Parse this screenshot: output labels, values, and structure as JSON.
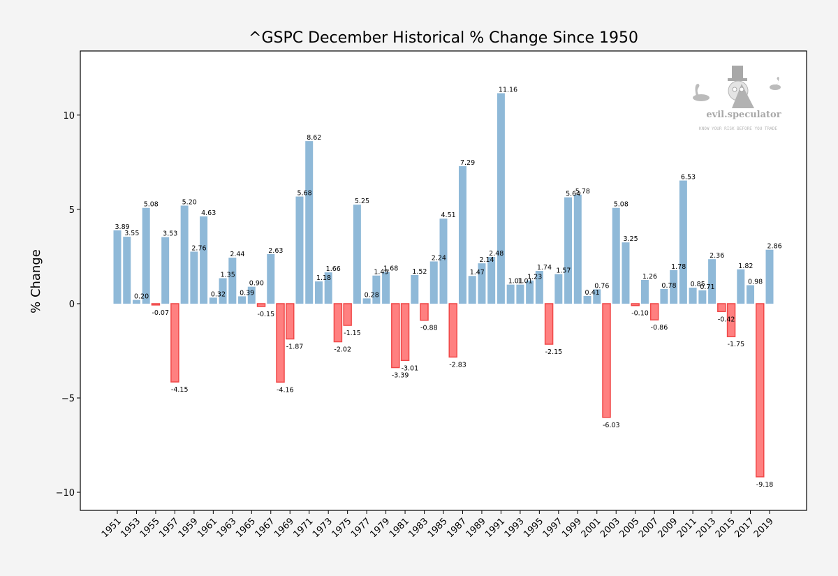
{
  "chart_data": {
    "type": "bar",
    "title": "^GSPC December Historical % Change Since 1950",
    "xlabel": "",
    "ylabel": "% Change",
    "ylim": [
      -10.96,
      13.4
    ],
    "yticks": [
      -10,
      -5,
      0,
      5,
      10
    ],
    "ytick_labels": [
      "−10",
      "−5",
      "0",
      "5",
      "10"
    ],
    "grid": false,
    "legend": null,
    "positive_color": "#8fb9d8",
    "negative_color": "#ff8080",
    "negative_edge_color": "#f04848",
    "categories": [
      "1951",
      "1952",
      "1953",
      "1954",
      "1955",
      "1956",
      "1957",
      "1958",
      "1959",
      "1960",
      "1961",
      "1962",
      "1963",
      "1964",
      "1965",
      "1966",
      "1967",
      "1968",
      "1969",
      "1970",
      "1971",
      "1972",
      "1973",
      "1974",
      "1975",
      "1976",
      "1977",
      "1978",
      "1979",
      "1980",
      "1981",
      "1982",
      "1983",
      "1984",
      "1985",
      "1986",
      "1987",
      "1988",
      "1989",
      "1990",
      "1991",
      "1992",
      "1993",
      "1994",
      "1995",
      "1996",
      "1997",
      "1998",
      "1999",
      "2000",
      "2001",
      "2002",
      "2003",
      "2004",
      "2005",
      "2006",
      "2007",
      "2008",
      "2009",
      "2010",
      "2011",
      "2012",
      "2013",
      "2014",
      "2015",
      "2016",
      "2017",
      "2018",
      "2019"
    ],
    "values": [
      3.89,
      3.55,
      0.2,
      5.08,
      -0.07,
      3.53,
      -4.15,
      5.2,
      2.76,
      4.63,
      0.32,
      1.35,
      2.44,
      0.39,
      0.9,
      -0.15,
      2.63,
      -4.16,
      -1.87,
      5.68,
      8.62,
      1.18,
      1.66,
      -2.02,
      -1.15,
      5.25,
      0.28,
      1.49,
      1.68,
      -3.39,
      -3.01,
      1.52,
      -0.88,
      2.24,
      4.51,
      -2.83,
      7.29,
      1.47,
      2.14,
      2.48,
      11.16,
      1.01,
      1.01,
      1.23,
      1.74,
      -2.15,
      1.57,
      5.64,
      5.78,
      0.41,
      0.76,
      -6.03,
      5.08,
      3.25,
      -0.1,
      1.26,
      -0.86,
      0.78,
      1.78,
      6.53,
      0.85,
      0.71,
      2.36,
      -0.42,
      -1.75,
      1.82,
      0.98,
      -9.18,
      2.86
    ],
    "xtick_labels": [
      "1951",
      "1953",
      "1955",
      "1957",
      "1959",
      "1961",
      "1963",
      "1965",
      "1967",
      "1969",
      "1971",
      "1973",
      "1975",
      "1977",
      "1979",
      "1981",
      "1983",
      "1985",
      "1987",
      "1989",
      "1991",
      "1993",
      "1995",
      "1997",
      "1999",
      "2001",
      "2003",
      "2005",
      "2007",
      "2009",
      "2011",
      "2013",
      "2015",
      "2017",
      "2019"
    ]
  },
  "watermark": {
    "brand": "evil.speculator",
    "tagline": "KNOW YOUR RISK BEFORE YOU TRADE"
  }
}
